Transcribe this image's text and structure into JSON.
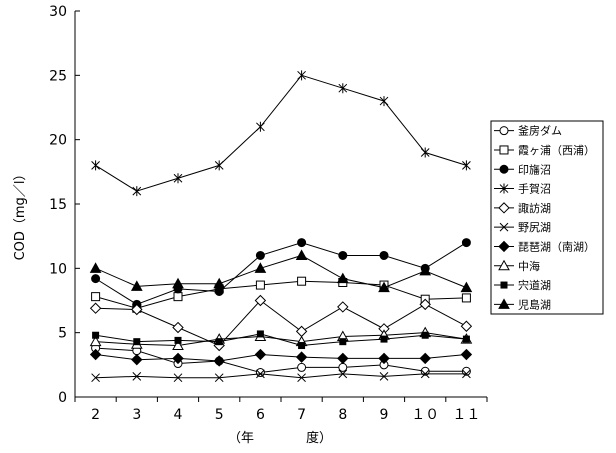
{
  "chart_data": {
    "type": "line",
    "title": "",
    "ylabel": "COD（mg／l）",
    "xlabel": "（年　　　　度）",
    "ylim": [
      0,
      30
    ],
    "yticks": [
      "0",
      "5",
      "10",
      "15",
      "20",
      "25",
      "30"
    ],
    "categories": [
      "2",
      "3",
      "4",
      "5",
      "6",
      "7",
      "8",
      "9",
      "10",
      "11"
    ],
    "category_labels": [
      "2",
      "3",
      "4",
      "5",
      "6",
      "7",
      "8",
      "9",
      "１０",
      "１１"
    ],
    "grid": false,
    "legend_position": "right",
    "series": [
      {
        "name": "釜房ダム",
        "marker": "circle-open",
        "values": [
          3.8,
          3.6,
          2.6,
          2.8,
          1.9,
          2.3,
          2.3,
          2.5,
          2.0,
          2.0
        ]
      },
      {
        "name": "霞ヶ浦（西浦）",
        "marker": "square-open",
        "values": [
          7.8,
          6.9,
          7.8,
          8.4,
          8.7,
          9.0,
          8.9,
          8.7,
          7.6,
          7.7
        ]
      },
      {
        "name": "印旛沼",
        "marker": "circle-filled",
        "values": [
          9.2,
          7.2,
          8.4,
          8.2,
          11.0,
          12.0,
          11.0,
          11.0,
          10.0,
          12.0
        ]
      },
      {
        "name": "手賀沼",
        "marker": "asterisk",
        "values": [
          18.0,
          16.0,
          17.0,
          18.0,
          21.0,
          25.0,
          24.0,
          23.0,
          19.0,
          18.0
        ]
      },
      {
        "name": "諏訪湖",
        "marker": "diamond-open",
        "values": [
          6.9,
          6.8,
          5.4,
          4.0,
          7.5,
          5.1,
          7.0,
          5.3,
          7.2,
          5.5
        ]
      },
      {
        "name": "野尻湖",
        "marker": "x",
        "values": [
          1.5,
          1.6,
          1.5,
          1.5,
          1.8,
          1.5,
          1.8,
          1.6,
          1.8,
          1.8
        ]
      },
      {
        "name": "琵琶湖（南湖）",
        "marker": "diamond-filled",
        "values": [
          3.3,
          2.9,
          3.0,
          2.8,
          3.3,
          3.1,
          3.0,
          3.0,
          3.0,
          3.3
        ]
      },
      {
        "name": "中海",
        "marker": "triangle-open",
        "values": [
          4.3,
          4.1,
          4.0,
          4.5,
          4.7,
          4.3,
          4.7,
          4.8,
          5.0,
          4.5
        ]
      },
      {
        "name": "宍道湖",
        "marker": "square-filled",
        "values": [
          4.8,
          4.3,
          4.4,
          4.3,
          4.9,
          4.0,
          4.3,
          4.5,
          4.8,
          4.5
        ]
      },
      {
        "name": "児島湖",
        "marker": "triangle-filled",
        "values": [
          10.0,
          8.6,
          8.8,
          8.8,
          10.0,
          11.0,
          9.2,
          8.5,
          9.8,
          8.5
        ]
      }
    ]
  }
}
